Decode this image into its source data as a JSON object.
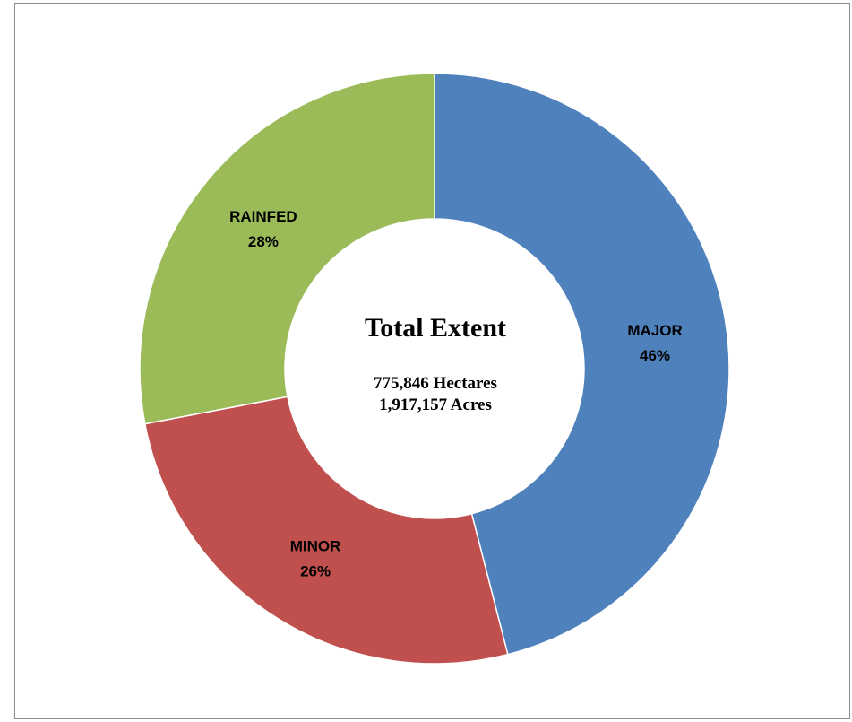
{
  "chart_data": {
    "type": "pie",
    "variant": "donut",
    "categories": [
      "MAJOR",
      "MINOR",
      "RAINFED"
    ],
    "values": [
      46,
      26,
      28
    ],
    "value_labels": [
      "46%",
      "26%",
      "28%"
    ],
    "colors": [
      "#4F81BD",
      "#C0504D",
      "#9BBB59"
    ],
    "center_text": {
      "title": "Total Extent",
      "lines": [
        "775,846 Hectares",
        "1,917,157 Acres"
      ]
    },
    "legend": "none",
    "start_angle_deg": 0,
    "direction": "clockwise"
  }
}
